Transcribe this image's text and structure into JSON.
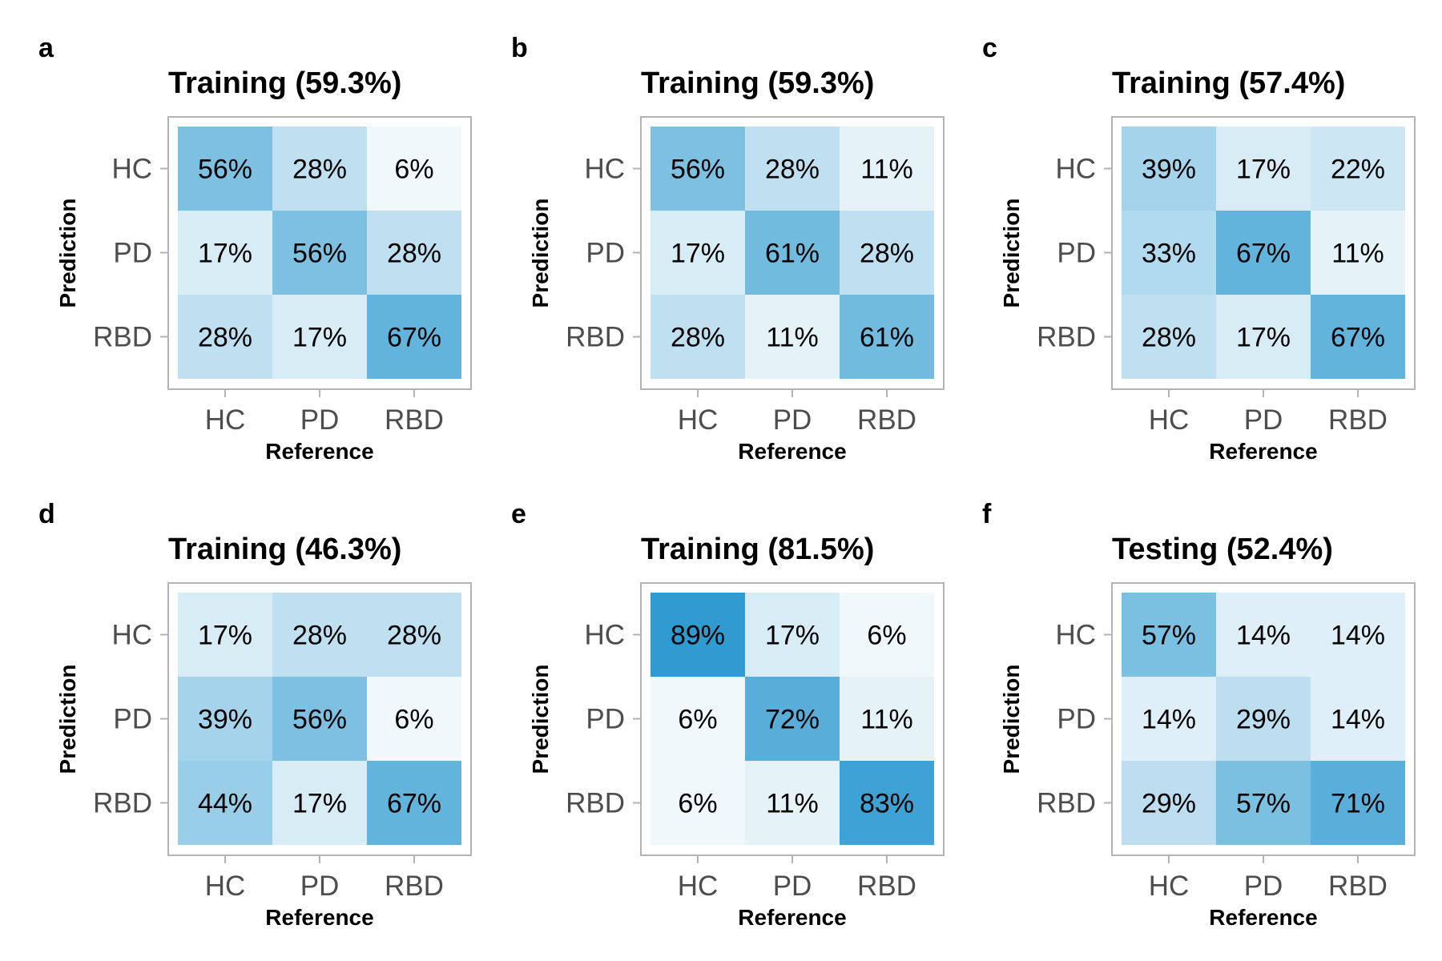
{
  "chart_data": [
    {
      "type": "heatmap",
      "panel": "a",
      "title": "Training (59.3%)",
      "xlabel": "Reference",
      "ylabel": "Prediction",
      "x_categories": [
        "HC",
        "PD",
        "RBD"
      ],
      "y_categories": [
        "HC",
        "PD",
        "RBD"
      ],
      "values": [
        [
          56,
          28,
          6
        ],
        [
          17,
          56,
          28
        ],
        [
          28,
          17,
          67
        ]
      ],
      "labels": [
        [
          "56%",
          "28%",
          "6%"
        ],
        [
          "17%",
          "56%",
          "28%"
        ],
        [
          "28%",
          "17%",
          "67%"
        ]
      ]
    },
    {
      "type": "heatmap",
      "panel": "b",
      "title": "Training (59.3%)",
      "xlabel": "Reference",
      "ylabel": "Prediction",
      "x_categories": [
        "HC",
        "PD",
        "RBD"
      ],
      "y_categories": [
        "HC",
        "PD",
        "RBD"
      ],
      "values": [
        [
          56,
          28,
          11
        ],
        [
          17,
          61,
          28
        ],
        [
          28,
          11,
          61
        ]
      ],
      "labels": [
        [
          "56%",
          "28%",
          "11%"
        ],
        [
          "17%",
          "61%",
          "28%"
        ],
        [
          "28%",
          "11%",
          "61%"
        ]
      ]
    },
    {
      "type": "heatmap",
      "panel": "c",
      "title": "Training (57.4%)",
      "xlabel": "Reference",
      "ylabel": "Prediction",
      "x_categories": [
        "HC",
        "PD",
        "RBD"
      ],
      "y_categories": [
        "HC",
        "PD",
        "RBD"
      ],
      "values": [
        [
          39,
          17,
          22
        ],
        [
          33,
          67,
          11
        ],
        [
          28,
          17,
          67
        ]
      ],
      "labels": [
        [
          "39%",
          "17%",
          "22%"
        ],
        [
          "33%",
          "67%",
          "11%"
        ],
        [
          "28%",
          "17%",
          "67%"
        ]
      ]
    },
    {
      "type": "heatmap",
      "panel": "d",
      "title": "Training (46.3%)",
      "xlabel": "Reference",
      "ylabel": "Prediction",
      "x_categories": [
        "HC",
        "PD",
        "RBD"
      ],
      "y_categories": [
        "HC",
        "PD",
        "RBD"
      ],
      "values": [
        [
          17,
          28,
          28
        ],
        [
          39,
          56,
          6
        ],
        [
          44,
          17,
          67
        ]
      ],
      "labels": [
        [
          "17%",
          "28%",
          "28%"
        ],
        [
          "39%",
          "56%",
          "6%"
        ],
        [
          "44%",
          "17%",
          "67%"
        ]
      ]
    },
    {
      "type": "heatmap",
      "panel": "e",
      "title": "Training (81.5%)",
      "xlabel": "Reference",
      "ylabel": "Prediction",
      "x_categories": [
        "HC",
        "PD",
        "RBD"
      ],
      "y_categories": [
        "HC",
        "PD",
        "RBD"
      ],
      "values": [
        [
          89,
          17,
          6
        ],
        [
          6,
          72,
          11
        ],
        [
          6,
          11,
          83
        ]
      ],
      "labels": [
        [
          "89%",
          "17%",
          "6%"
        ],
        [
          "6%",
          "72%",
          "11%"
        ],
        [
          "6%",
          "11%",
          "83%"
        ]
      ]
    },
    {
      "type": "heatmap",
      "panel": "f",
      "title": "Testing (52.4%)",
      "xlabel": "Reference",
      "ylabel": "Prediction",
      "x_categories": [
        "HC",
        "PD",
        "RBD"
      ],
      "y_categories": [
        "HC",
        "PD",
        "RBD"
      ],
      "values": [
        [
          57,
          14,
          14
        ],
        [
          14,
          29,
          14
        ],
        [
          29,
          57,
          71
        ]
      ],
      "labels": [
        [
          "57%",
          "14%",
          "14%"
        ],
        [
          "14%",
          "29%",
          "14%"
        ],
        [
          "29%",
          "57%",
          "71%"
        ]
      ]
    }
  ],
  "colors": {
    "low": "#ffffff",
    "high": "#2e9ad0",
    "frame": "#b3b3b3",
    "tick_label": "#4d4d4d"
  }
}
